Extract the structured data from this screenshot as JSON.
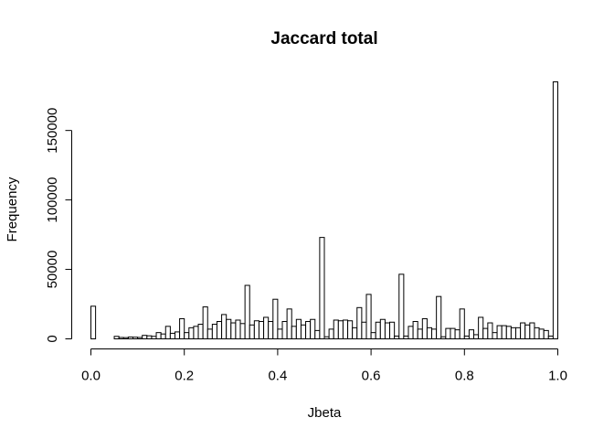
{
  "chart_data": {
    "type": "bar",
    "title": "Jaccard total",
    "xlabel": "Jbeta",
    "ylabel": "Frequency",
    "xlim": [
      0,
      1
    ],
    "ylim": [
      0,
      185000
    ],
    "bin_width": 0.01,
    "bin_start": 0,
    "x_ticks": [
      0.0,
      0.2,
      0.4,
      0.6,
      0.8,
      1.0
    ],
    "x_tick_labels": [
      "0.0",
      "0.2",
      "0.4",
      "0.6",
      "0.8",
      "1.0"
    ],
    "y_ticks": [
      0,
      50000,
      100000,
      150000
    ],
    "y_tick_labels": [
      "0",
      "50000",
      "100000",
      "150000"
    ],
    "grid": false,
    "bar_fill": "#ffffff",
    "bar_stroke": "#000000",
    "values": [
      23500,
      0,
      0,
      0,
      0,
      1800,
      1000,
      900,
      1300,
      1200,
      1000,
      2500,
      2200,
      1800,
      4500,
      3500,
      9000,
      4000,
      5000,
      14500,
      4500,
      8000,
      9000,
      10500,
      23000,
      7000,
      10500,
      12500,
      17500,
      14000,
      11500,
      13500,
      11000,
      38500,
      10000,
      13000,
      12500,
      15500,
      12500,
      28500,
      7000,
      12500,
      21500,
      9000,
      14000,
      10000,
      12500,
      14000,
      6000,
      73000,
      1500,
      7000,
      13500,
      13000,
      13500,
      13000,
      8000,
      22500,
      12000,
      32000,
      4500,
      12000,
      14000,
      11500,
      12000,
      2000,
      46500,
      2000,
      9000,
      12500,
      7000,
      14500,
      8000,
      7000,
      30500,
      1500,
      7500,
      7500,
      6500,
      21500,
      2000,
      6500,
      3000,
      15500,
      7500,
      11500,
      4500,
      9500,
      9500,
      9000,
      8000,
      8000,
      11500,
      10000,
      11500,
      8000,
      7000,
      6000,
      2000,
      185000
    ]
  }
}
